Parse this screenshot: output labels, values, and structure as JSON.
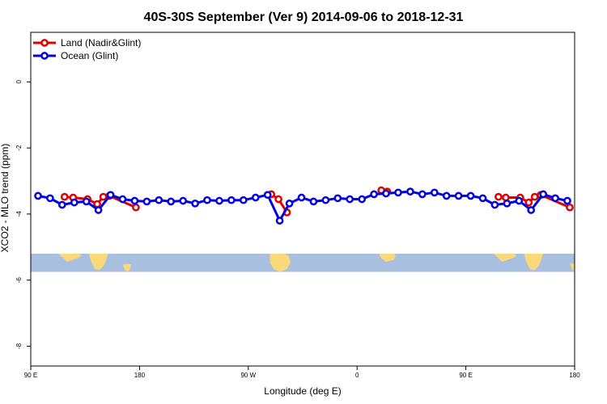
{
  "chart_data": {
    "type": "line",
    "title": "40S-30S September (Ver 9)   2014-09-06 to 2018-12-31",
    "xlabel": "Longitude (deg E)",
    "ylabel": "XCO2 - MLO trend (ppm)",
    "xlim": [
      90,
      540
    ],
    "ylim": [
      -8.6,
      1.5
    ],
    "x_ticks": [
      {
        "value": 90,
        "label": "90 E"
      },
      {
        "value": 180,
        "label": "180"
      },
      {
        "value": 270,
        "label": "90 W"
      },
      {
        "value": 360,
        "label": "0"
      },
      {
        "value": 450,
        "label": "90 E"
      },
      {
        "value": 540,
        "label": "180"
      }
    ],
    "y_ticks": [
      {
        "value": 0,
        "label": "0"
      },
      {
        "value": -2,
        "label": "-2"
      },
      {
        "value": -4,
        "label": "-4"
      },
      {
        "value": -6,
        "label": "-6"
      },
      {
        "value": -8,
        "label": "-8"
      }
    ],
    "legend_position": "top-left",
    "series": [
      {
        "name": "Land (Nadir&Glint)",
        "color": "#e00000",
        "segments": [
          [
            [
              118,
              -3.48
            ],
            [
              125,
              -3.5
            ],
            [
              137,
              -3.55
            ],
            [
              145,
              -3.7
            ],
            [
              150,
              -3.48
            ],
            [
              155,
              -3.45
            ],
            [
              177,
              -3.8
            ]
          ],
          [
            [
              289,
              -3.4
            ],
            [
              295,
              -3.55
            ],
            [
              302,
              -3.95
            ]
          ],
          [
            [
              380,
              -3.28
            ],
            [
              385,
              -3.32
            ]
          ],
          [
            [
              477,
              -3.48
            ],
            [
              483,
              -3.5
            ],
            [
              495,
              -3.5
            ],
            [
              502,
              -3.65
            ],
            [
              507,
              -3.48
            ],
            [
              512,
              -3.42
            ],
            [
              536,
              -3.8
            ]
          ]
        ]
      },
      {
        "name": "Ocean (Glint)",
        "color": "#0000e0",
        "segments": [
          [
            [
              96,
              -3.45
            ],
            [
              106,
              -3.52
            ],
            [
              116,
              -3.72
            ],
            [
              126,
              -3.65
            ],
            [
              136,
              -3.62
            ],
            [
              146,
              -3.88
            ],
            [
              156,
              -3.42
            ],
            [
              166,
              -3.55
            ],
            [
              176,
              -3.6
            ],
            [
              186,
              -3.62
            ],
            [
              196,
              -3.58
            ],
            [
              206,
              -3.62
            ],
            [
              216,
              -3.6
            ],
            [
              226,
              -3.68
            ],
            [
              236,
              -3.58
            ],
            [
              246,
              -3.6
            ],
            [
              256,
              -3.58
            ],
            [
              266,
              -3.58
            ],
            [
              276,
              -3.5
            ],
            [
              286,
              -3.42
            ],
            [
              296,
              -4.2
            ],
            [
              304,
              -3.68
            ],
            [
              314,
              -3.5
            ],
            [
              324,
              -3.62
            ],
            [
              334,
              -3.58
            ],
            [
              344,
              -3.52
            ],
            [
              354,
              -3.55
            ],
            [
              364,
              -3.55
            ],
            [
              374,
              -3.4
            ],
            [
              384,
              -3.38
            ],
            [
              394,
              -3.35
            ],
            [
              404,
              -3.32
            ],
            [
              414,
              -3.4
            ],
            [
              424,
              -3.35
            ],
            [
              434,
              -3.45
            ],
            [
              444,
              -3.45
            ],
            [
              454,
              -3.45
            ],
            [
              464,
              -3.52
            ],
            [
              474,
              -3.72
            ],
            [
              484,
              -3.68
            ],
            [
              494,
              -3.6
            ],
            [
              504,
              -3.88
            ],
            [
              514,
              -3.4
            ],
            [
              524,
              -3.52
            ],
            [
              534,
              -3.6
            ]
          ]
        ]
      }
    ],
    "map_strip": {
      "ylim": [
        -5.75,
        -5.2
      ],
      "ocean_color": "#a8bfdf",
      "land_color": "#fad97a"
    }
  }
}
